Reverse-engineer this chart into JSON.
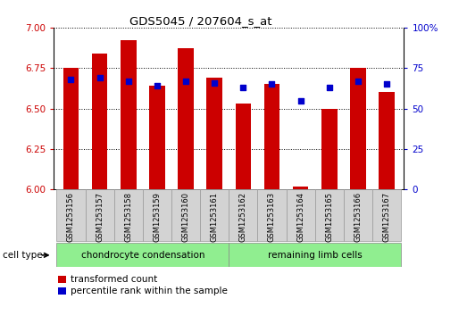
{
  "title": "GDS5045 / 207604_s_at",
  "samples": [
    "GSM1253156",
    "GSM1253157",
    "GSM1253158",
    "GSM1253159",
    "GSM1253160",
    "GSM1253161",
    "GSM1253162",
    "GSM1253163",
    "GSM1253164",
    "GSM1253165",
    "GSM1253166",
    "GSM1253167"
  ],
  "red_values": [
    6.75,
    6.84,
    6.92,
    6.64,
    6.87,
    6.69,
    6.53,
    6.65,
    6.02,
    6.5,
    6.75,
    6.6
  ],
  "blue_values": [
    68,
    69,
    67,
    64,
    67,
    66,
    63,
    65,
    55,
    63,
    67,
    65
  ],
  "cell_type_groups": [
    {
      "label": "chondrocyte condensation",
      "start": 0,
      "end": 5,
      "color": "#90EE90"
    },
    {
      "label": "remaining limb cells",
      "start": 6,
      "end": 11,
      "color": "#90EE90"
    }
  ],
  "cell_type_label": "cell type",
  "legend_items": [
    {
      "label": "transformed count",
      "color": "#CC0000"
    },
    {
      "label": "percentile rank within the sample",
      "color": "#0000CC"
    }
  ],
  "ylim_left": [
    6.0,
    7.0
  ],
  "ylim_right": [
    0,
    100
  ],
  "yticks_left": [
    6.0,
    6.25,
    6.5,
    6.75,
    7.0
  ],
  "yticks_right": [
    0,
    25,
    50,
    75,
    100
  ],
  "bar_color": "#CC0000",
  "dot_color": "#0000CC",
  "bg_color": "#FFFFFF",
  "bar_bottom": 6.0,
  "dot_size": 18,
  "bar_width": 0.55
}
